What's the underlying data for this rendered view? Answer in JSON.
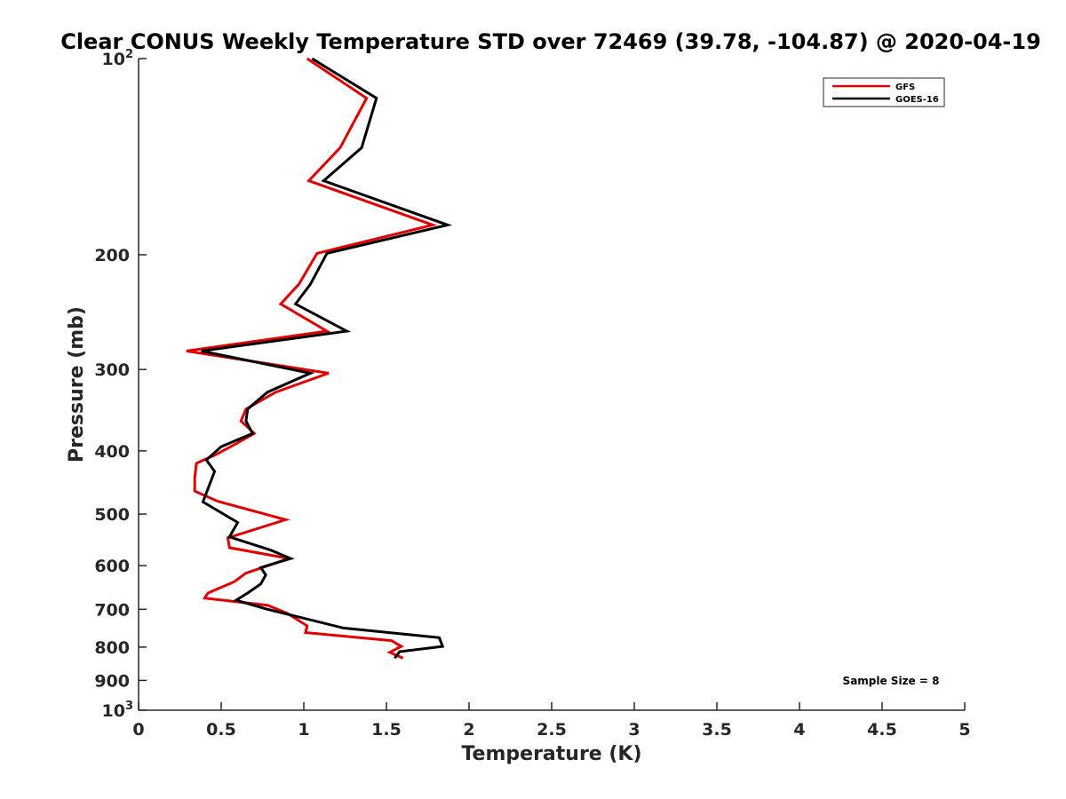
{
  "chart_data": {
    "type": "line",
    "title": "Clear CONUS Weekly Temperature STD over 72469 (39.78, -104.87) @ 2020-04-19",
    "xlabel": "Temperature (K)",
    "ylabel": "Pressure (mb)",
    "xlim": [
      0,
      5
    ],
    "ylim": [
      100,
      1000
    ],
    "y_scale": "log",
    "y_reversed": true,
    "grid": false,
    "legend_position": "top-right",
    "x_ticks": [
      "0",
      "0.5",
      "1",
      "1.5",
      "2",
      "2.5",
      "3",
      "3.5",
      "4",
      "4.5",
      "5"
    ],
    "y_ticks": [
      {
        "value": 100,
        "label": "10",
        "sup": "2"
      },
      {
        "value": 200,
        "label": "200"
      },
      {
        "value": 300,
        "label": "300"
      },
      {
        "value": 400,
        "label": "400"
      },
      {
        "value": 500,
        "label": "500"
      },
      {
        "value": 600,
        "label": "600"
      },
      {
        "value": 700,
        "label": "700"
      },
      {
        "value": 800,
        "label": "800"
      },
      {
        "value": 900,
        "label": "900"
      },
      {
        "value": 1000,
        "label": "10",
        "sup": "3"
      }
    ],
    "annotation": "Sample Size = 8",
    "series": [
      {
        "name": "GFS",
        "color": "#e00000",
        "points": [
          [
            1.02,
            100
          ],
          [
            1.38,
            115
          ],
          [
            1.22,
            137
          ],
          [
            1.03,
            154
          ],
          [
            1.78,
            180
          ],
          [
            1.08,
            199
          ],
          [
            0.97,
            222
          ],
          [
            0.86,
            238
          ],
          [
            1.14,
            262
          ],
          [
            0.29,
            281
          ],
          [
            1.15,
            304
          ],
          [
            0.83,
            325
          ],
          [
            0.65,
            345
          ],
          [
            0.62,
            360
          ],
          [
            0.7,
            376
          ],
          [
            0.59,
            390
          ],
          [
            0.47,
            405
          ],
          [
            0.35,
            418
          ],
          [
            0.34,
            440
          ],
          [
            0.34,
            461
          ],
          [
            0.48,
            478
          ],
          [
            0.89,
            510
          ],
          [
            0.54,
            544
          ],
          [
            0.55,
            563
          ],
          [
            0.91,
            585
          ],
          [
            0.65,
            616
          ],
          [
            0.58,
            635
          ],
          [
            0.42,
            661
          ],
          [
            0.4,
            673
          ],
          [
            0.78,
            690
          ],
          [
            0.9,
            710
          ],
          [
            1.02,
            742
          ],
          [
            1.01,
            760
          ],
          [
            1.53,
            782
          ],
          [
            1.59,
            798
          ],
          [
            1.52,
            815
          ],
          [
            1.6,
            832
          ]
        ]
      },
      {
        "name": "GOES-16",
        "color": "#000000",
        "points": [
          [
            1.05,
            100
          ],
          [
            1.44,
            115
          ],
          [
            1.35,
            137
          ],
          [
            1.12,
            154
          ],
          [
            1.87,
            180
          ],
          [
            1.14,
            199
          ],
          [
            1.04,
            222
          ],
          [
            0.95,
            238
          ],
          [
            1.26,
            262
          ],
          [
            0.38,
            281
          ],
          [
            1.04,
            304
          ],
          [
            0.78,
            325
          ],
          [
            0.66,
            345
          ],
          [
            0.65,
            360
          ],
          [
            0.69,
            376
          ],
          [
            0.5,
            394
          ],
          [
            0.41,
            413
          ],
          [
            0.46,
            430
          ],
          [
            0.43,
            450
          ],
          [
            0.39,
            479
          ],
          [
            0.6,
            515
          ],
          [
            0.55,
            542
          ],
          [
            0.8,
            568
          ],
          [
            0.92,
            585
          ],
          [
            0.74,
            604
          ],
          [
            0.77,
            620
          ],
          [
            0.74,
            640
          ],
          [
            0.66,
            661
          ],
          [
            0.59,
            678
          ],
          [
            0.78,
            700
          ],
          [
            1.24,
            748
          ],
          [
            1.82,
            774
          ],
          [
            1.84,
            798
          ],
          [
            1.58,
            813
          ],
          [
            1.55,
            832
          ]
        ]
      }
    ]
  }
}
